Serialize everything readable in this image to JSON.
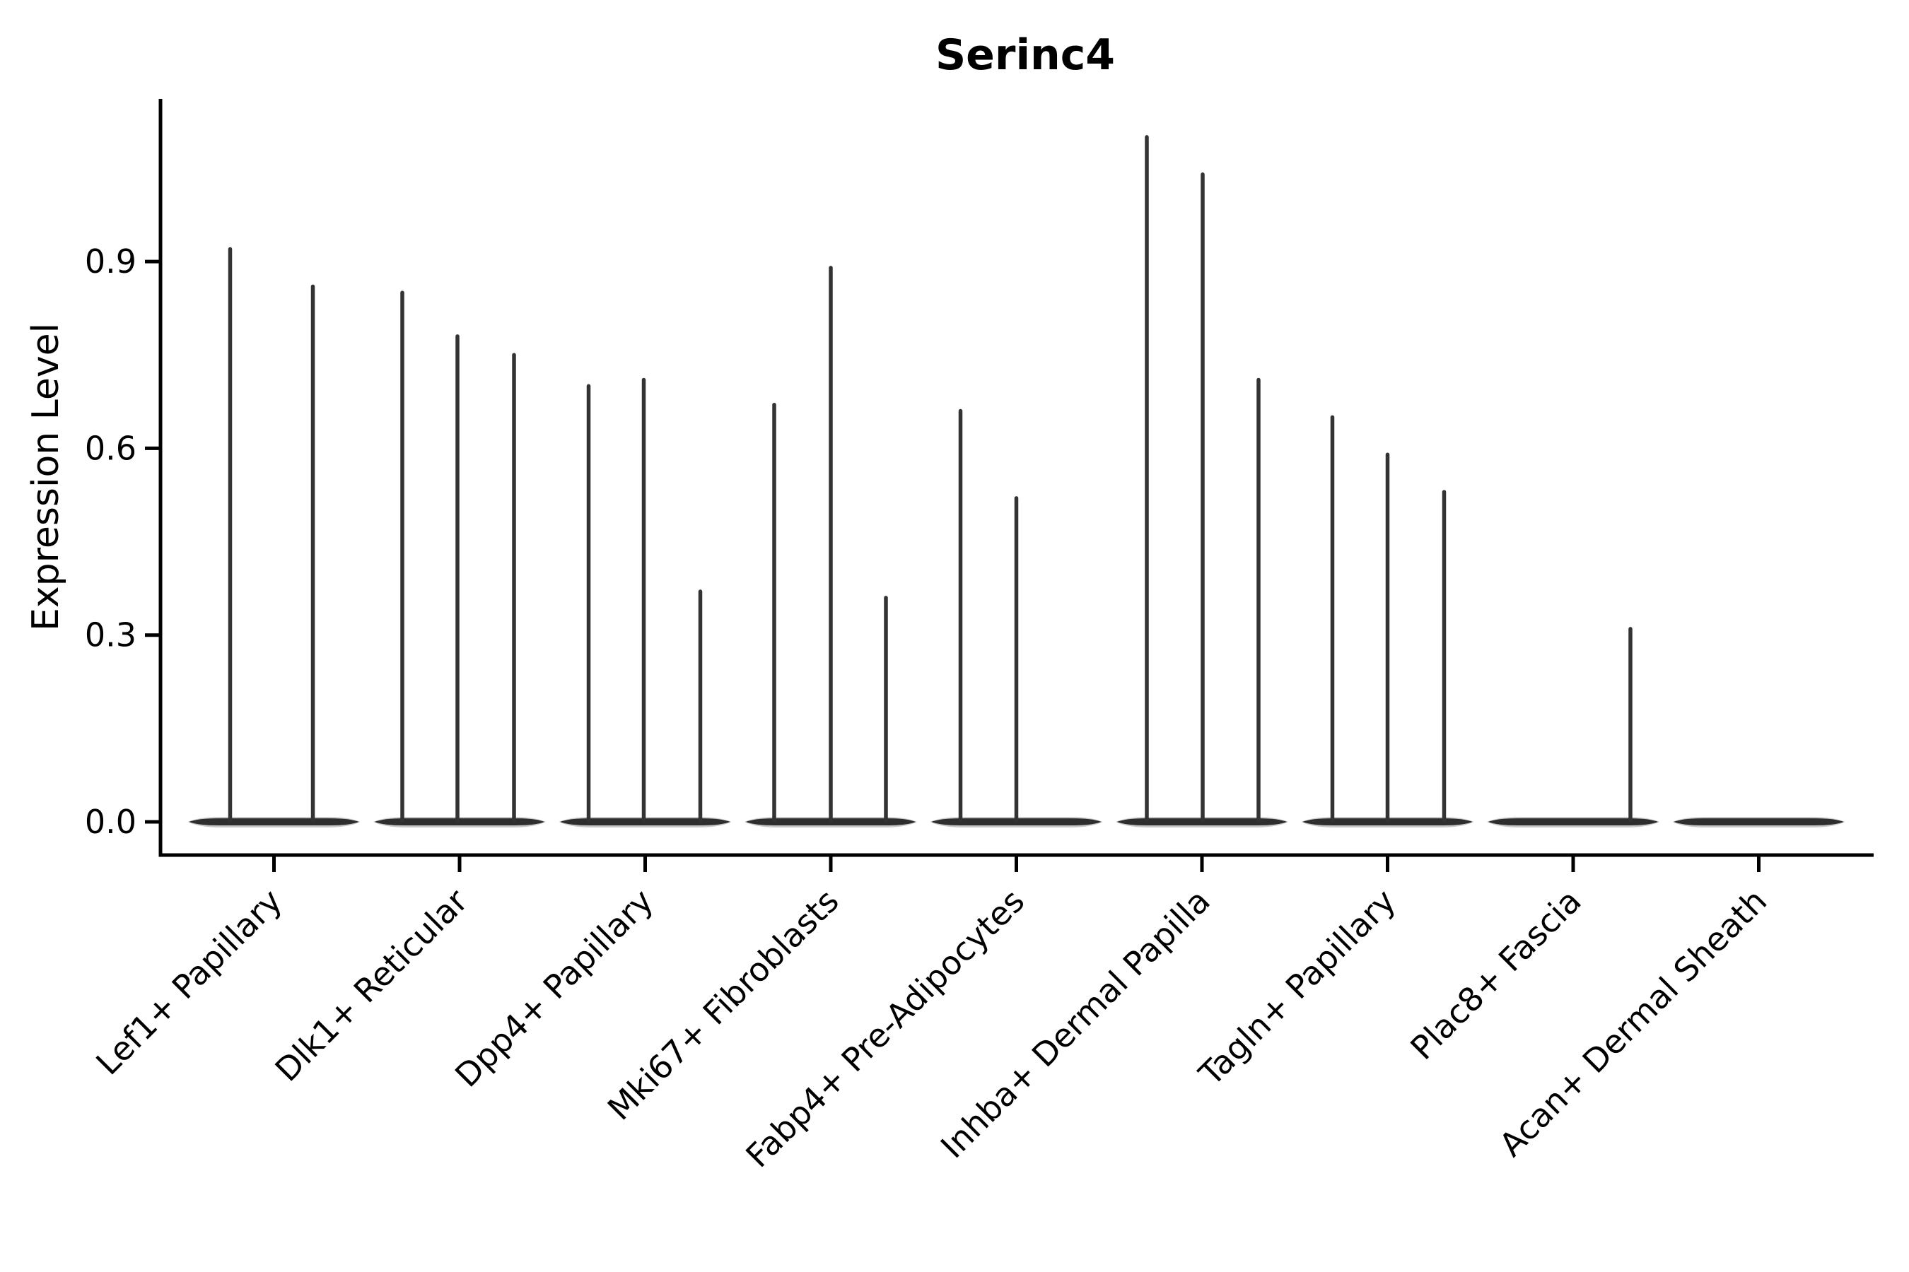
{
  "chart_data": {
    "type": "violin",
    "title": "Serinc4",
    "ylabel": "Expression Level",
    "xlabel": "",
    "grid": false,
    "legend": "none",
    "ylim": [
      -0.05,
      1.16
    ],
    "yticks": [
      {
        "value": 0.0,
        "label": "0.0"
      },
      {
        "value": 0.3,
        "label": "0.3"
      },
      {
        "value": 0.6,
        "label": "0.6"
      },
      {
        "value": 0.9,
        "label": "0.9"
      }
    ],
    "categories": [
      {
        "label": "Lef1+ Papillary",
        "spikes": [
          {
            "dx": -62,
            "max": 0.92
          },
          {
            "dx": 55,
            "max": 0.86
          }
        ]
      },
      {
        "label": "Dlk1+ Reticular",
        "spikes": [
          {
            "dx": -81,
            "max": 0.85
          },
          {
            "dx": -3,
            "max": 0.78
          },
          {
            "dx": 77,
            "max": 0.75
          }
        ]
      },
      {
        "label": "Dpp4+ Papillary",
        "spikes": [
          {
            "dx": -80,
            "max": 0.7
          },
          {
            "dx": -2,
            "max": 0.71
          },
          {
            "dx": 78,
            "max": 0.37
          }
        ]
      },
      {
        "label": "Mki67+ Fibroblasts",
        "spikes": [
          {
            "dx": -80,
            "max": 0.67
          },
          {
            "dx": 0,
            "max": 0.89
          },
          {
            "dx": 78,
            "max": 0.36
          }
        ]
      },
      {
        "label": "Fabp4+ Pre-Adipocytes",
        "spikes": [
          {
            "dx": -79,
            "max": 0.66
          },
          {
            "dx": 0,
            "max": 0.52
          }
        ]
      },
      {
        "label": "Inhba+ Dermal Papilla",
        "spikes": [
          {
            "dx": -78,
            "max": 1.1
          },
          {
            "dx": 1,
            "max": 1.04
          },
          {
            "dx": 80,
            "max": 0.71
          }
        ]
      },
      {
        "label": "Tagln+ Papillary",
        "spikes": [
          {
            "dx": -78,
            "max": 0.65
          },
          {
            "dx": 0,
            "max": 0.59
          },
          {
            "dx": 80,
            "max": 0.53
          }
        ]
      },
      {
        "label": "Plac8+ Fascia",
        "spikes": [
          {
            "dx": 81,
            "max": 0.31
          }
        ]
      },
      {
        "label": "Acan+ Dermal Sheath",
        "spikes": []
      }
    ],
    "colors": {
      "spike": "#333333",
      "violin_body": "#2e2e2e",
      "violin_halo": "#9a9a9a",
      "axis": "#000000",
      "text": "#000000",
      "background": "#ffffff"
    }
  }
}
